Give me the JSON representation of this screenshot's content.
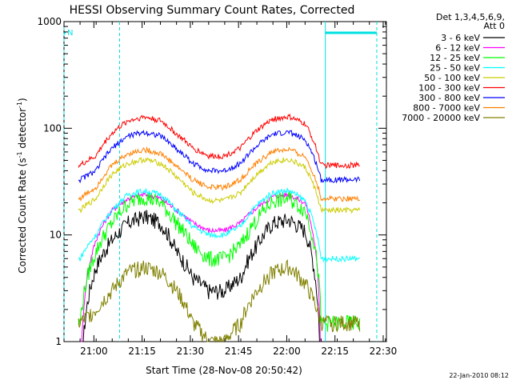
{
  "chart_data": {
    "type": "line",
    "title": "HESSI Observing Summary Count Rates, Corrected",
    "xlabel": "Start Time (28-Nov-08 20:50:42)",
    "ylabel_main": "Corrected Count Rate (s",
    "ylabel_sup1": "-1",
    "ylabel_mid": " detector",
    "ylabel_sup2": "-1",
    "ylabel_end": ")",
    "yscale": "log",
    "ylim": [
      1,
      1000
    ],
    "xlim": [
      "20:50:42",
      "22:31:00"
    ],
    "x_tick_labels": [
      "21:00",
      "21:15",
      "21:30",
      "21:45",
      "22:00",
      "22:15",
      "22:30"
    ],
    "x_tick_minutes": [
      0,
      15,
      30,
      45,
      60,
      75,
      90
    ],
    "y_tick_labels": [
      "1",
      "10",
      "100",
      "1000"
    ],
    "legend_header": [
      "Det 1,3,4,5,6,9,",
      "Att 0"
    ],
    "night_marker_label": "N",
    "footer_text": "22-Jan-2010 08:12",
    "night_intervals": [
      [
        "20:50:42",
        "21:08:00"
      ],
      [
        "22:12:00",
        "22:28:00"
      ]
    ],
    "series": [
      {
        "name": "3 - 6 keV",
        "color": "#000000",
        "rates": [
          0,
          0,
          5,
          9,
          13,
          15,
          13,
          7,
          4,
          3,
          3,
          4,
          8,
          13,
          14,
          11,
          0,
          0
        ]
      },
      {
        "name": "6 - 12 keV",
        "color": "#ff00ff",
        "rates": [
          0,
          0,
          9,
          17,
          22,
          24,
          22,
          17,
          13,
          11,
          11,
          13,
          18,
          23,
          24,
          20,
          0,
          0
        ]
      },
      {
        "name": "12 - 25 keV",
        "color": "#00ff00",
        "rates": [
          1.5,
          1.5,
          7,
          13,
          20,
          23,
          20,
          13,
          8,
          6,
          6,
          8,
          14,
          21,
          22,
          17,
          1.5,
          1.5
        ]
      },
      {
        "name": "25 - 50 keV",
        "color": "#00ffff",
        "rates": [
          6,
          6,
          10,
          17,
          24,
          26,
          24,
          17,
          12,
          10,
          10,
          12,
          19,
          25,
          26,
          21,
          6,
          6
        ]
      },
      {
        "name": "50 - 100 keV",
        "color": "#cccc00",
        "rates": [
          17,
          17,
          22,
          37,
          47,
          51,
          47,
          35,
          25,
          21,
          21,
          25,
          37,
          49,
          51,
          43,
          17,
          17
        ]
      },
      {
        "name": "100 - 300 keV",
        "color": "#ff0000",
        "rates": [
          45,
          45,
          55,
          90,
          118,
          128,
          118,
          88,
          65,
          55,
          55,
          65,
          95,
          122,
          128,
          110,
          45,
          45
        ]
      },
      {
        "name": "300 - 800 keV",
        "color": "#0000ff",
        "rates": [
          33,
          33,
          40,
          65,
          85,
          92,
          85,
          64,
          47,
          40,
          40,
          47,
          68,
          88,
          92,
          78,
          33,
          33
        ]
      },
      {
        "name": "800 - 7000 keV",
        "color": "#ff8000",
        "rates": [
          22,
          22,
          28,
          45,
          58,
          63,
          58,
          44,
          33,
          28,
          28,
          33,
          47,
          61,
          63,
          54,
          22,
          22
        ]
      },
      {
        "name": "7000 - 20000 keV",
        "color": "#808000",
        "rates": [
          1.5,
          1.5,
          2,
          3,
          4.5,
          5,
          4.5,
          3,
          1.5,
          1,
          1,
          1.5,
          3,
          4.5,
          5,
          3.5,
          1.5,
          1.5
        ]
      }
    ],
    "sample_minutes": [
      0,
      5,
      10,
      15,
      20,
      25,
      30,
      35,
      40,
      45,
      50,
      55,
      60,
      65,
      70,
      75,
      80,
      85
    ],
    "grid": false
  }
}
